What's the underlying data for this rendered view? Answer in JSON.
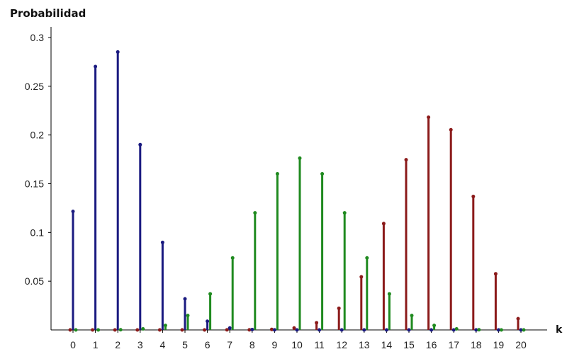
{
  "chart_data": {
    "type": "bar",
    "title": "",
    "ylabel": "Probabilidad",
    "xlabel": "k",
    "ylim": [
      0,
      0.3
    ],
    "xlim": [
      0,
      20
    ],
    "yticks": [
      "0.05",
      "0.1",
      "0.15",
      "0.2",
      "0.25",
      "0.3"
    ],
    "ytick_values": [
      0.05,
      0.1,
      0.15,
      0.2,
      0.25,
      0.3
    ],
    "categories": [
      0,
      1,
      2,
      3,
      4,
      5,
      6,
      7,
      8,
      9,
      10,
      11,
      12,
      13,
      14,
      15,
      16,
      17,
      18,
      19,
      20
    ],
    "grid": false,
    "legend": "none",
    "series": [
      {
        "color": "#1a1a80",
        "values": [
          0.1216,
          0.2702,
          0.2852,
          0.1901,
          0.0898,
          0.0319,
          0.0089,
          0.002,
          0.0004,
          0.0001,
          0,
          0,
          0,
          0,
          0,
          0,
          0,
          0,
          0,
          0,
          0
        ]
      },
      {
        "color": "#1f8a1f",
        "values": [
          0,
          0,
          0.0002,
          0.0011,
          0.0046,
          0.0148,
          0.037,
          0.0739,
          0.1201,
          0.1602,
          0.1762,
          0.1602,
          0.1201,
          0.0739,
          0.037,
          0.0148,
          0.0046,
          0.0011,
          0.0002,
          0,
          0
        ]
      },
      {
        "color": "#8b1a1a",
        "values": [
          0,
          0,
          0,
          0,
          0,
          0,
          0,
          0.0001,
          0.0001,
          0.0005,
          0.002,
          0.0074,
          0.0222,
          0.0545,
          0.1091,
          0.1746,
          0.2182,
          0.2054,
          0.1369,
          0.0576,
          0.0115
        ]
      }
    ]
  }
}
